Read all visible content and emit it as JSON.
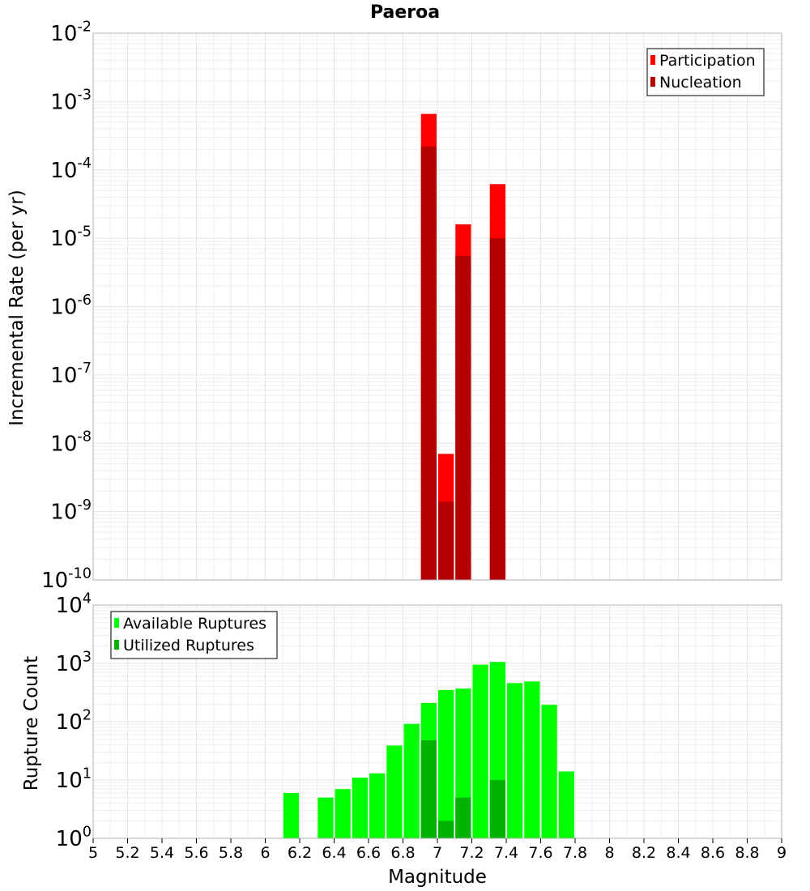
{
  "chart_data": [
    {
      "type": "bar",
      "title": "Paeroa",
      "xlabel": "",
      "ylabel": "Incremental Rate (per yr)",
      "y_scale": "log",
      "ylim_exp": [
        -10,
        -2
      ],
      "xlim": [
        5,
        9
      ],
      "bar_width": 0.1,
      "grid": true,
      "legend_position": "top-right",
      "series": [
        {
          "name": "Participation",
          "color": "#ff0000",
          "x": [
            6.95,
            7.05,
            7.15,
            7.35
          ],
          "values": [
            0.00066,
            7e-09,
            1.6e-05,
            6.2e-05
          ]
        },
        {
          "name": "Nucleation",
          "color": "#b30000",
          "x": [
            6.95,
            7.05,
            7.15,
            7.35
          ],
          "values": [
            0.00022,
            1.4e-09,
            5.5e-06,
            1e-05
          ]
        }
      ]
    },
    {
      "type": "bar",
      "title": "",
      "xlabel": "Magnitude",
      "ylabel": "Rupture Count",
      "y_scale": "log",
      "ylim_exp": [
        0,
        4
      ],
      "xlim": [
        5,
        9
      ],
      "bar_width": 0.1,
      "grid": true,
      "legend_position": "top-left",
      "x_ticks": [
        "5",
        "5.2",
        "5.4",
        "5.6",
        "5.8",
        "6",
        "6.2",
        "6.4",
        "6.6",
        "6.8",
        "7",
        "7.2",
        "7.4",
        "7.6",
        "7.8",
        "8",
        "8.2",
        "8.4",
        "8.6",
        "8.8",
        "9"
      ],
      "series": [
        {
          "name": "Available Ruptures",
          "color": "#00ff00",
          "x": [
            6.15,
            6.35,
            6.45,
            6.55,
            6.65,
            6.75,
            6.85,
            6.95,
            7.05,
            7.15,
            7.25,
            7.35,
            7.45,
            7.55,
            7.65,
            7.75
          ],
          "values": [
            6,
            5,
            7,
            11,
            13,
            39,
            92,
            210,
            350,
            370,
            950,
            1060,
            460,
            490,
            195,
            14
          ]
        },
        {
          "name": "Utilized Ruptures",
          "color": "#00b300",
          "x": [
            6.95,
            7.05,
            7.15,
            7.35
          ],
          "values": [
            48,
            2,
            5,
            10
          ]
        }
      ]
    }
  ]
}
